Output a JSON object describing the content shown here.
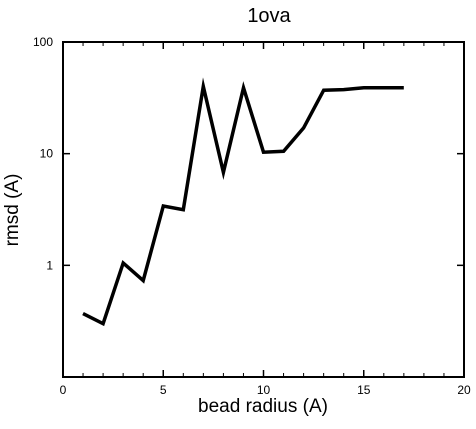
{
  "chart_data": {
    "type": "line",
    "title": "1ova",
    "xlabel": "bead radius (A)",
    "ylabel": "rmsd (A)",
    "xlim": [
      0,
      20
    ],
    "ylim": [
      0.1,
      100
    ],
    "yscale": "log",
    "grid": false,
    "x_ticks": [
      0,
      5,
      10,
      15,
      20
    ],
    "x_tick_labels": [
      "0",
      "5",
      "10",
      "15",
      "20"
    ],
    "y_ticks": [
      1,
      10,
      100
    ],
    "y_tick_labels": [
      "1",
      "10",
      "100"
    ],
    "series": [
      {
        "color": "#000000",
        "x": [
          1,
          2,
          3,
          4,
          5,
          6,
          7,
          8,
          9,
          10,
          11,
          12,
          13,
          14,
          15,
          16,
          17
        ],
        "y": [
          0.37,
          0.3,
          1.05,
          0.73,
          3.4,
          3.15,
          40,
          6.8,
          39,
          10.3,
          10.5,
          17,
          37,
          37.5,
          39,
          39,
          39
        ]
      }
    ]
  }
}
